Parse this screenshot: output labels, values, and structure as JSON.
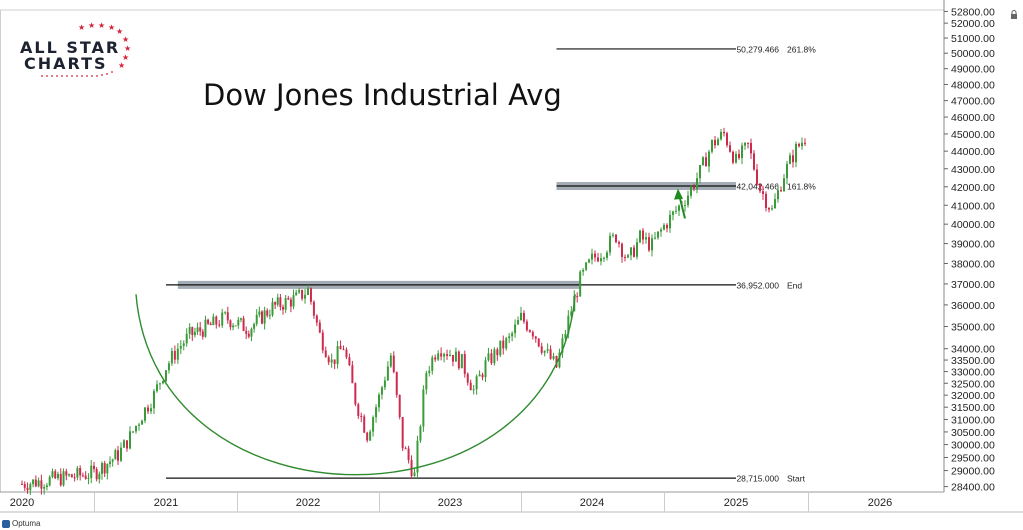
{
  "logo": {
    "line1": "ALL STAR",
    "line2": "CHARTS"
  },
  "title": "Dow Jones Industrial Avg",
  "footer": {
    "brand": "Optuma"
  },
  "colors": {
    "up": "#3a9b3a",
    "down": "#cc2b4d",
    "arc": "#2e8b2e",
    "arrow": "#1f8a1f",
    "band": "#9aa3ad",
    "grid": "#dddddd"
  },
  "chart_data": {
    "type": "candlestick",
    "title": "Dow Jones Industrial Avg",
    "x": {
      "ticks": [
        "2020",
        "2021",
        "2022",
        "2023",
        "2024",
        "2025",
        "2026"
      ]
    },
    "y": {
      "scale": "log",
      "range": [
        28200,
        52900
      ],
      "ticks": [
        "52800.00",
        "52000.00",
        "51000.00",
        "50000.00",
        "49000.00",
        "48000.00",
        "47000.00",
        "46000.00",
        "45000.00",
        "44000.00",
        "43000.00",
        "42000.00",
        "41000.00",
        "40000.00",
        "39000.00",
        "38000.00",
        "37000.00",
        "36000.00",
        "35000.00",
        "34000.00",
        "33500.00",
        "33000.00",
        "32500.00",
        "32000.00",
        "31500.00",
        "31000.00",
        "30500.00",
        "30000.00",
        "29500.00",
        "29000.00",
        "28400.00"
      ]
    },
    "levels": [
      {
        "value": 50279.466,
        "label": "50,279.466",
        "tag": "261.8%",
        "x_from": "2023-10",
        "x_to": "2025"
      },
      {
        "value": 42042.466,
        "label": "42,042.466",
        "tag": "161.8%",
        "x_from": "2023-10",
        "x_to": "2025"
      },
      {
        "value": 36952.0,
        "label": "36,952.000",
        "tag": "End",
        "x_from": "2021",
        "x_to": "2025"
      },
      {
        "value": 28715.0,
        "label": "28,715.000",
        "tag": "Start",
        "x_from": "2021",
        "x_to": "2025"
      }
    ],
    "resistance_bands": [
      {
        "value": 36952,
        "x_from": "2021-02",
        "x_to": "2023-12"
      },
      {
        "value": 42042,
        "x_from": "2023-10",
        "x_to": "2025"
      }
    ],
    "annotations": [
      "rounding-bottom arc from 2021 to 2023-12",
      "upward arrow under 2024-11 pullback"
    ],
    "weekly_closes": [
      {
        "t": "2020-01",
        "c": 28500
      },
      {
        "t": "2020-07",
        "c": 28900
      },
      {
        "t": "2020-09",
        "c": 29600
      },
      {
        "t": "2020-10",
        "c": 30300
      },
      {
        "t": "2020-11",
        "c": 31200
      },
      {
        "t": "2020-12",
        "c": 32000
      },
      {
        "t": "2021-01",
        "c": 33200
      },
      {
        "t": "2021-02",
        "c": 34000
      },
      {
        "t": "2021-03",
        "c": 34600
      },
      {
        "t": "2021-05",
        "c": 35100
      },
      {
        "t": "2021-06",
        "c": 35400
      },
      {
        "t": "2021-08",
        "c": 34900
      },
      {
        "t": "2021-10",
        "c": 35900
      },
      {
        "t": "2021-12",
        "c": 36300
      },
      {
        "t": "2022-01",
        "c": 36700
      },
      {
        "t": "2022-02",
        "c": 34600
      },
      {
        "t": "2022-03",
        "c": 33400
      },
      {
        "t": "2022-04",
        "c": 34100
      },
      {
        "t": "2022-05",
        "c": 31800
      },
      {
        "t": "2022-06",
        "c": 30400
      },
      {
        "t": "2022-07",
        "c": 31900
      },
      {
        "t": "2022-08",
        "c": 33700
      },
      {
        "t": "2022-09",
        "c": 30000
      },
      {
        "t": "2022-10",
        "c": 28800
      },
      {
        "t": "2022-11",
        "c": 33000
      },
      {
        "t": "2022-12",
        "c": 34100
      },
      {
        "t": "2023-01",
        "c": 33800
      },
      {
        "t": "2023-02",
        "c": 33400
      },
      {
        "t": "2023-03",
        "c": 32200
      },
      {
        "t": "2023-04",
        "c": 33300
      },
      {
        "t": "2023-05",
        "c": 33900
      },
      {
        "t": "2023-06",
        "c": 34400
      },
      {
        "t": "2023-07",
        "c": 35400
      },
      {
        "t": "2023-08",
        "c": 34800
      },
      {
        "t": "2023-09",
        "c": 33900
      },
      {
        "t": "2023-10",
        "c": 33200
      },
      {
        "t": "2023-11",
        "c": 35300
      },
      {
        "t": "2023-12",
        "c": 37200
      },
      {
        "t": "2024-01",
        "c": 38200
      },
      {
        "t": "2024-02",
        "c": 38700
      },
      {
        "t": "2024-03",
        "c": 39400
      },
      {
        "t": "2024-04",
        "c": 38100
      },
      {
        "t": "2024-05",
        "c": 39300
      },
      {
        "t": "2024-06",
        "c": 38900
      },
      {
        "t": "2024-07",
        "c": 39900
      },
      {
        "t": "2024-08",
        "c": 40700
      },
      {
        "t": "2024-09",
        "c": 41600
      },
      {
        "t": "2024-10",
        "c": 42800
      },
      {
        "t": "2024-11",
        "c": 44400
      },
      {
        "t": "2024-12",
        "c": 45000
      },
      {
        "t": "2025-01",
        "c": 43400
      },
      {
        "t": "2025-02",
        "c": 44300
      },
      {
        "t": "2025-03",
        "c": 41900
      },
      {
        "t": "2025-04",
        "c": 40700
      },
      {
        "t": "2025-05",
        "c": 42700
      },
      {
        "t": "2025-06",
        "c": 44100
      },
      {
        "t": "2025-07",
        "c": 45000
      }
    ]
  }
}
